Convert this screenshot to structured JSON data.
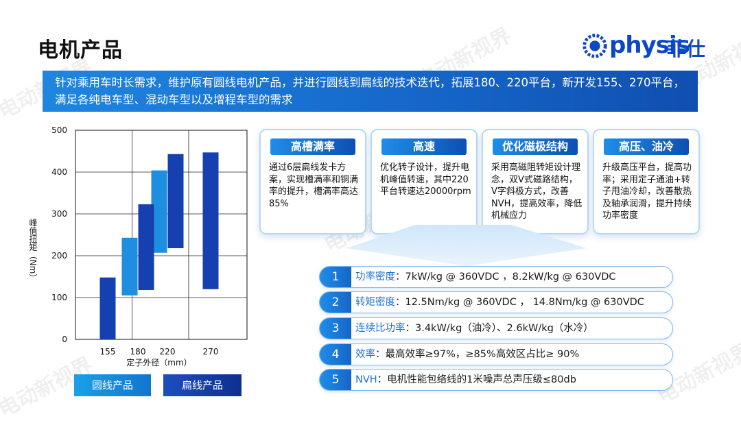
{
  "page": {
    "title": "电机产品",
    "watermark": "电动新视界"
  },
  "logo": {
    "word": "physis",
    "cn": "菲仕"
  },
  "banner": {
    "text": "针对乘用车时长需求，维护原有圆线电机产品，并进行圆线到扁线的技术迭代，拓展180、220平台，新开发155、270平台，满足各纯电车型、混动车型以及增程车型的需求"
  },
  "chart_data": {
    "type": "bar",
    "subtype": "floating-range",
    "xlabel": "定子外径（mm）",
    "ylabel": "峰值扭矩（Nm）",
    "ylim": [
      0,
      500
    ],
    "yticks": [
      0,
      100,
      200,
      300,
      400,
      500
    ],
    "x_tick_labels": [
      "155",
      "180",
      "220",
      "270"
    ],
    "grid": true,
    "legend_position": "bottom",
    "series": [
      {
        "name": "圆线产品",
        "color": "#1e8fe0",
        "bars": [
          {
            "x": "180",
            "low": 105,
            "high": 243
          },
          {
            "x": "220",
            "low": 207,
            "high": 404
          }
        ]
      },
      {
        "name": "扁线产品",
        "color": "#1640b0",
        "bars": [
          {
            "x": "155",
            "low": 0,
            "high": 148
          },
          {
            "x": "180",
            "low": 118,
            "high": 323
          },
          {
            "x": "220",
            "low": 218,
            "high": 443
          },
          {
            "x": "270",
            "low": 120,
            "high": 447
          }
        ]
      }
    ]
  },
  "cards": [
    {
      "title": "高槽满率",
      "body": "通过6层扁线发卡方案，实现槽满率和铜满率的提升，槽满率高达85%"
    },
    {
      "title": "高速",
      "body": "优化转子设计，提升电机峰值转速，其中220平台转速达20000rpm"
    },
    {
      "title": "优化磁极结构",
      "body": "采用高磁阻转矩设计理念，双V式磁路结构，V字斜极方式，改善NVH，提高效率，降低机械应力"
    },
    {
      "title": "高压、油冷",
      "body": "升级高压平台，提高功率；采用定子通油+转子甩油冷却，改善散热及轴承润滑，提升持续功率密度"
    }
  ],
  "specs": [
    {
      "num": "1",
      "label": "功率密度",
      "value": "：7kW/kg @ 360VDC ，8.2kW/kg @ 630VDC"
    },
    {
      "num": "2",
      "label": "转矩密度",
      "value": "：12.5Nm/kg @ 360VDC ， 14.8Nm/kg @ 630VDC"
    },
    {
      "num": "3",
      "label": "连续比功率",
      "value": "：3.4kW/kg（油冷）、2.6kW/kg（水冷）"
    },
    {
      "num": "4",
      "label": "效率",
      "value": "：最高效率≥97%，≥85%高效区占比≥ 90%"
    },
    {
      "num": "5",
      "label": "NVH",
      "value": "：电机性能包络线的1米噪声总声压级≤80db"
    }
  ]
}
